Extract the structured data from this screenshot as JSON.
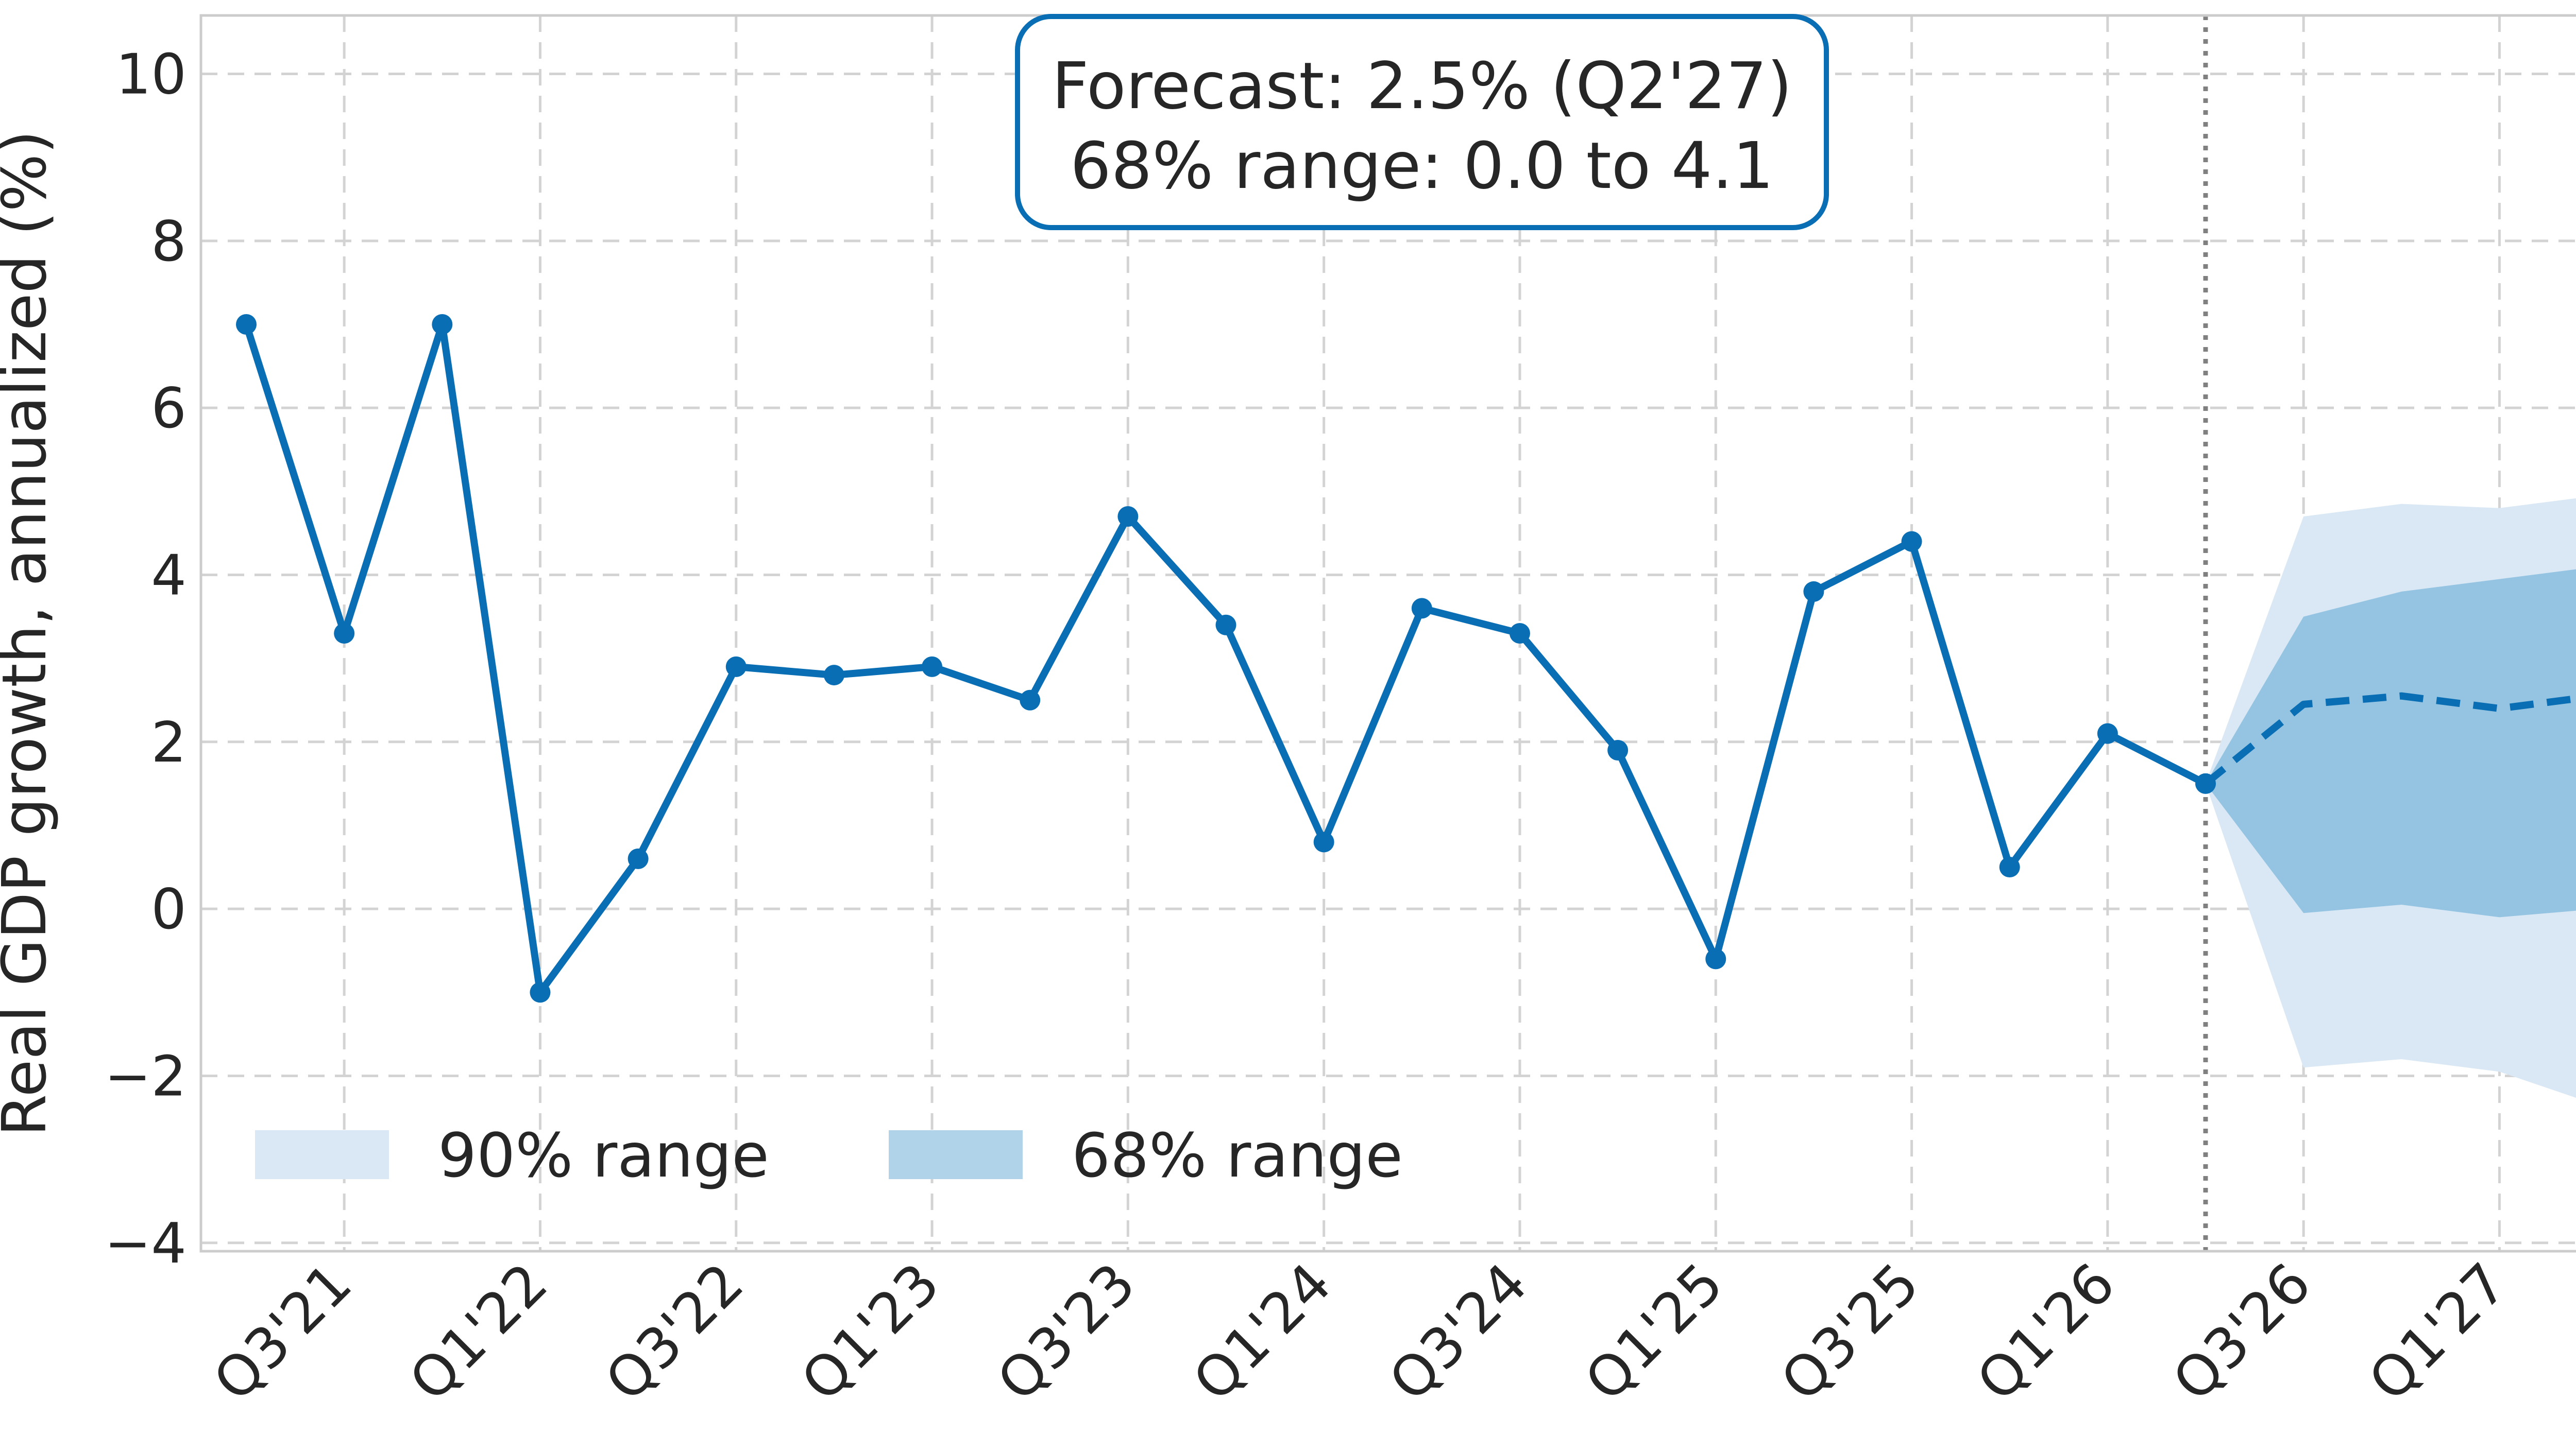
{
  "chart_data": {
    "type": "line",
    "title": "",
    "xlabel": "",
    "ylabel": "Real GDP growth, annualized (%)",
    "ylim": [
      -4.1,
      10.7
    ],
    "yticks": [
      -4,
      -2,
      0,
      2,
      4,
      6,
      8,
      10
    ],
    "ytick_labels": [
      "−4",
      "−2",
      "0",
      "2",
      "4",
      "6",
      "8",
      "10"
    ],
    "grid": true,
    "legend_position": "lower-left",
    "x": [
      "Q2'21",
      "Q3'21",
      "Q4'21",
      "Q1'22",
      "Q2'22",
      "Q3'22",
      "Q4'22",
      "Q1'23",
      "Q2'23",
      "Q3'23",
      "Q4'23",
      "Q1'24",
      "Q2'24",
      "Q3'24",
      "Q4'24",
      "Q1'25",
      "Q2'25",
      "Q3'25",
      "Q4'25",
      "Q1'26",
      "Q2'26",
      "Q3'26",
      "Q4'26",
      "Q1'27",
      "Q2'27"
    ],
    "xtick_labels": [
      "Q3'21",
      "Q1'22",
      "Q3'22",
      "Q1'23",
      "Q3'23",
      "Q1'24",
      "Q3'24",
      "Q1'25",
      "Q3'25",
      "Q1'26",
      "Q3'26",
      "Q1'27"
    ],
    "forecast_start": "Q2'26",
    "series": [
      {
        "role": "actual",
        "x": [
          "Q2'21",
          "Q3'21",
          "Q4'21",
          "Q1'22",
          "Q2'22",
          "Q3'22",
          "Q4'22",
          "Q1'23",
          "Q2'23",
          "Q3'23",
          "Q4'23",
          "Q1'24",
          "Q2'24",
          "Q3'24",
          "Q4'24",
          "Q1'25",
          "Q2'25",
          "Q3'25",
          "Q4'25",
          "Q1'26",
          "Q2'26"
        ],
        "values": [
          7.0,
          3.3,
          7.0,
          -1.0,
          0.6,
          2.9,
          2.8,
          2.9,
          2.5,
          4.7,
          3.4,
          0.8,
          3.6,
          3.3,
          1.9,
          -0.6,
          3.8,
          4.4,
          0.5,
          2.1,
          1.5
        ]
      },
      {
        "role": "forecast",
        "x": [
          "Q2'26",
          "Q3'26",
          "Q4'26",
          "Q1'27",
          "Q2'27"
        ],
        "values": [
          1.5,
          2.45,
          2.55,
          2.4,
          2.55
        ]
      }
    ],
    "bands": [
      {
        "name": "90% range",
        "x": [
          "Q2'26",
          "Q3'26",
          "Q4'26",
          "Q1'27",
          "Q2'27"
        ],
        "lower": [
          1.5,
          -1.9,
          -1.8,
          -1.95,
          -2.35
        ],
        "upper": [
          1.5,
          4.7,
          4.85,
          4.8,
          4.95
        ]
      },
      {
        "name": "68% range",
        "x": [
          "Q2'26",
          "Q3'26",
          "Q4'26",
          "Q1'27",
          "Q2'27"
        ],
        "lower": [
          1.5,
          -0.05,
          0.05,
          -0.1,
          0.0
        ],
        "upper": [
          1.5,
          3.5,
          3.8,
          3.95,
          4.1
        ]
      }
    ],
    "annotation": {
      "line1": "Forecast: 2.5% (Q2'27)",
      "line2": "68% range: 0.0 to 4.1"
    },
    "colors": {
      "line": "#0a6eb4",
      "band90": "#d9e8f4",
      "band68": "#94c4e2",
      "legend68": "#b0d3e9",
      "grid": "#d3d3d3",
      "divider": "#808080",
      "frame": "#cccccc"
    }
  }
}
